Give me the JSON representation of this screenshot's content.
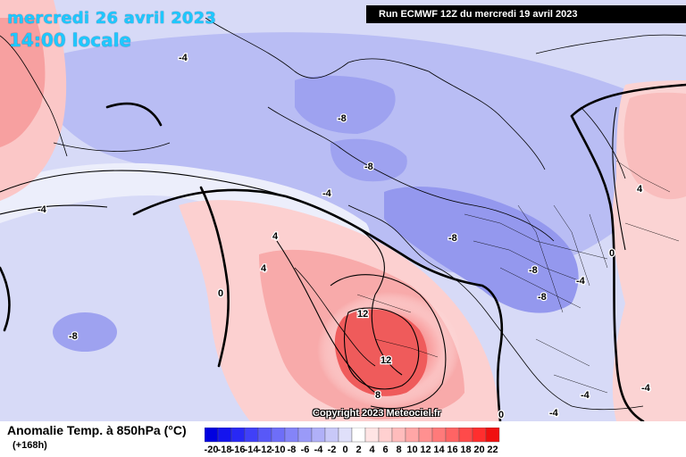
{
  "header": {
    "date": "mercredi 26 avril 2023",
    "time": "14:00 locale",
    "run": "Run ECMWF 12Z du mercredi 19 avril 2023"
  },
  "map": {
    "contour_labels": [
      {
        "text": "-4"
      },
      {
        "text": "-4"
      },
      {
        "text": "-8"
      },
      {
        "text": "-8"
      },
      {
        "text": "-4"
      },
      {
        "text": "4"
      },
      {
        "text": "4"
      },
      {
        "text": "0"
      },
      {
        "text": "-8"
      },
      {
        "text": "-8"
      },
      {
        "text": "-8"
      },
      {
        "text": "-8"
      },
      {
        "text": "-4"
      },
      {
        "text": "4"
      },
      {
        "text": "0"
      },
      {
        "text": "12"
      },
      {
        "text": "12"
      },
      {
        "text": "8"
      },
      {
        "text": "-4"
      },
      {
        "text": "-4"
      },
      {
        "text": "0"
      },
      {
        "text": "-4"
      }
    ],
    "copyright": "Copyright 2023 Meteociel.fr"
  },
  "legend": {
    "title": "Anomalie Temp. à 850hPa (°C)",
    "subtitle": "(+168h)",
    "scale_values": [
      "-20",
      "-18",
      "-16",
      "-14",
      "-12",
      "-10",
      "-8",
      "-6",
      "-4",
      "-2",
      "0",
      "2",
      "4",
      "6",
      "8",
      "10",
      "12",
      "14",
      "16",
      "18",
      "20",
      "22"
    ],
    "scale_colors": [
      "#0000e0",
      "#1414ee",
      "#2828f5",
      "#4040f8",
      "#5858f8",
      "#6e6ef8",
      "#8484f8",
      "#9a9af8",
      "#b0b0f8",
      "#c8c8f8",
      "#e0e0fa",
      "#ffffff",
      "#ffe4e4",
      "#ffd0d0",
      "#ffbcbc",
      "#ffa6a6",
      "#ff9090",
      "#ff7a7a",
      "#ff6464",
      "#ff4a4a",
      "#ff2e2e",
      "#f01010"
    ]
  }
}
